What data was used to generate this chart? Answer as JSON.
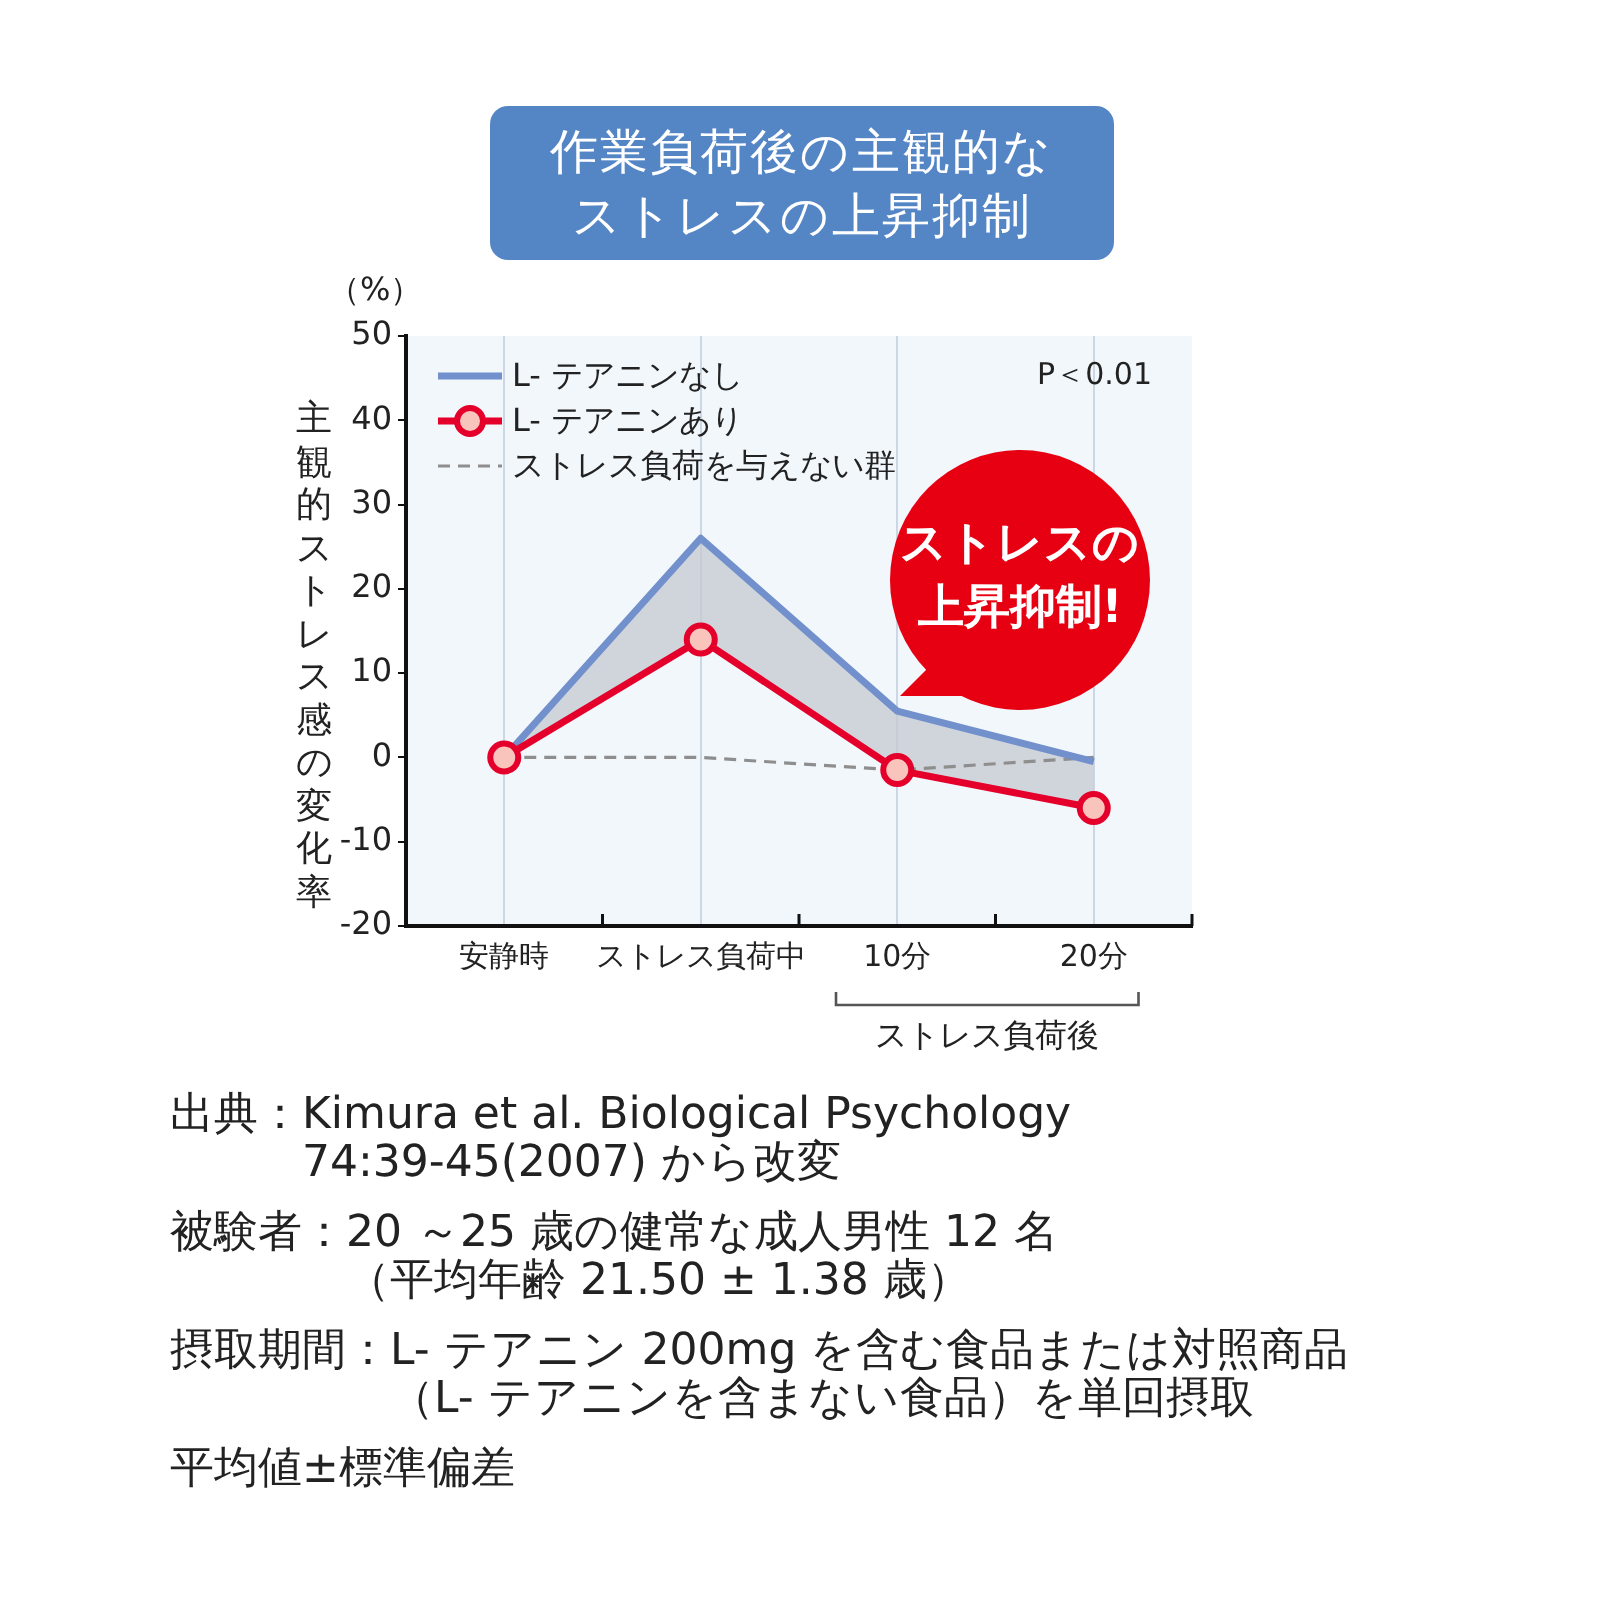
{
  "chart_data": {
    "type": "line",
    "title": "作業負荷後の主観的なストレスの上昇抑制",
    "ylabel": "主観的ストレス感の変化率",
    "categories": [
      "安静時",
      "ストレス負荷中",
      "10分",
      "20分"
    ],
    "series": [
      {
        "name": "L- テアニンなし",
        "color": "#7190cc",
        "values": [
          0,
          26,
          5.5,
          -0.5
        ],
        "marker": "none",
        "line_style": "solid"
      },
      {
        "name": "L- テアニンあり",
        "color": "#e4002b",
        "values": [
          0,
          14,
          -1.5,
          -6
        ],
        "marker": "circle",
        "line_style": "solid"
      },
      {
        "name": "ストレス負荷を与えない群",
        "color": "#8e8e8e",
        "values": [
          0,
          0,
          -1.5,
          0
        ],
        "marker": "none",
        "line_style": "dashed"
      }
    ],
    "ylim": [
      -20,
      50
    ],
    "yticks": [
      -20,
      -10,
      0,
      10,
      20,
      30,
      40,
      50
    ],
    "grid": "x",
    "legend": "top left",
    "annotations": [
      "（%）",
      "P＜0.01",
      "ストレスの上昇抑制!",
      "ストレス負荷後",
      "出典：Kimura et al. Biological Psychology 74:39-45(2007) から改変",
      "被験者：20 ～25 歳の健常な成人男性 12 名（平均年齢 21.50 ± 1.38 歳）",
      "摂取期間：L- テアニン 200mg を含む食品または対照商品（L- テアニンを含まない食品）を単回摂取",
      "平均値±標準偏差"
    ]
  }
}
